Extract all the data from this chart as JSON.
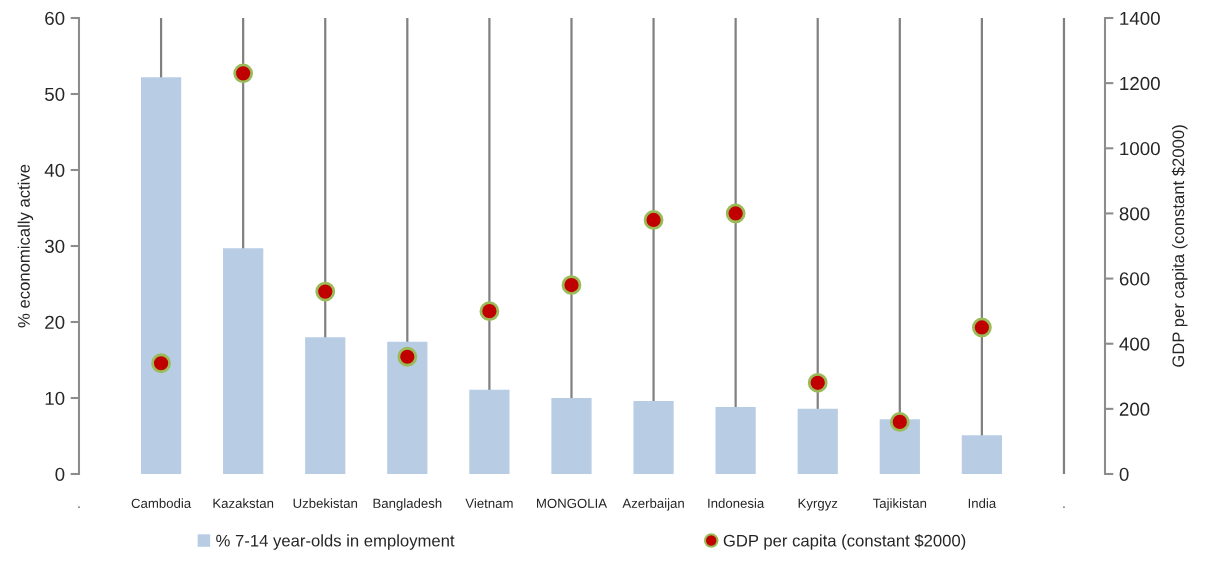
{
  "chart_data": {
    "type": "bar",
    "categories": [
      ".",
      "Cambodia",
      "Kazakstan",
      "Uzbekistan",
      "Bangladesh",
      "Vietnam",
      "MONGOLIA",
      "Azerbaijan",
      "Indonesia",
      "Kyrgyz",
      "Tajikistan",
      "India",
      "."
    ],
    "series": [
      {
        "name": "% 7-14 year-olds in employment",
        "color": "#b8cce4",
        "values": [
          null,
          52.2,
          29.7,
          18.0,
          17.4,
          11.1,
          10.0,
          9.6,
          8.8,
          8.6,
          7.2,
          5.1,
          null
        ]
      },
      {
        "name": "GDP per capita (constant $2000)",
        "type": "scatter",
        "axis": "y2",
        "color": "#c00000",
        "values": [
          null,
          340,
          1230,
          560,
          360,
          500,
          580,
          780,
          800,
          280,
          160,
          450,
          null
        ]
      }
    ],
    "ylabel": "% economically active",
    "y2label": "GDP per capita (constant $2000)",
    "ylim": [
      0,
      60
    ],
    "yticks": [
      0,
      10,
      20,
      30,
      40,
      50,
      60
    ],
    "y2lim": [
      0,
      1400
    ],
    "y2ticks": [
      0,
      200,
      400,
      600,
      800,
      1000,
      1200,
      1400
    ],
    "grid": "x",
    "legend": "bottom",
    "marker": "circle"
  }
}
